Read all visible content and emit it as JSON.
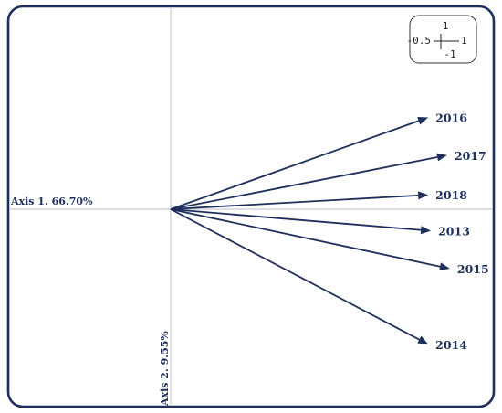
{
  "chart_data": {
    "type": "biplot",
    "axis_x_label": "Axis 1. 66.70%",
    "axis_y_label": "Axis 2. 9.55%",
    "scale_legend": {
      "top": "1",
      "left": "-0.5",
      "right": "1",
      "bottom": "-1"
    },
    "vectors": [
      {
        "name": "2016",
        "x": 0.95,
        "y": 0.51
      },
      {
        "name": "2017",
        "x": 1.02,
        "y": 0.3
      },
      {
        "name": "2018",
        "x": 0.95,
        "y": 0.08
      },
      {
        "name": "2013",
        "x": 0.96,
        "y": -0.12
      },
      {
        "name": "2015",
        "x": 1.03,
        "y": -0.33
      },
      {
        "name": "2014",
        "x": 0.95,
        "y": -0.75
      }
    ],
    "colors": {
      "frame": "#1e2f5c",
      "vectors": "#1e2f5c",
      "axes": "#b9bcc4"
    }
  }
}
